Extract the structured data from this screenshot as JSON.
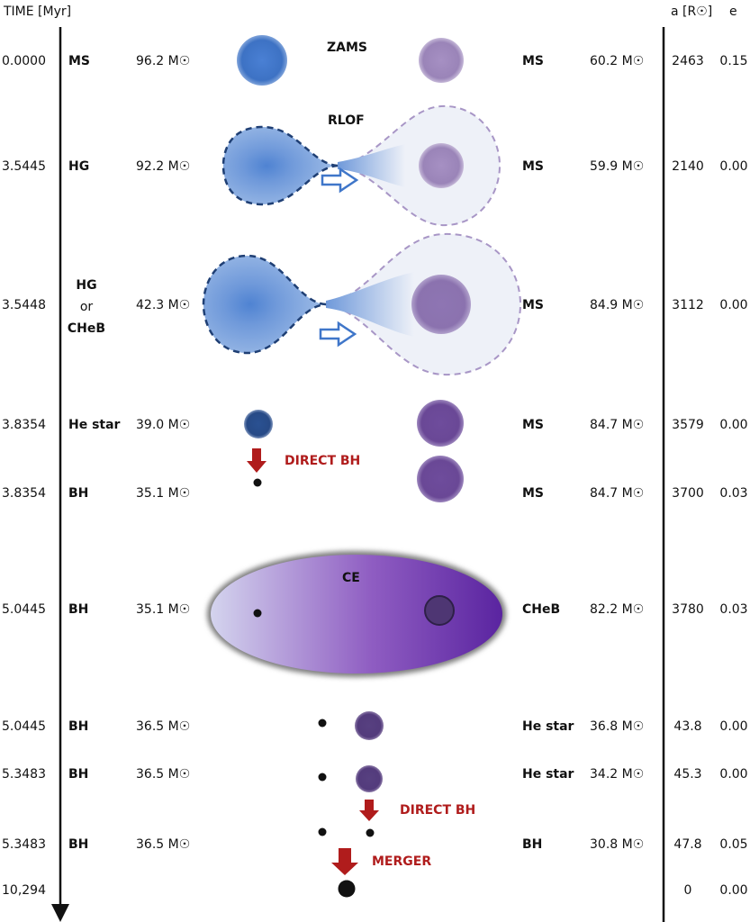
{
  "header": {
    "time_label": "TIME [Myr]",
    "a_label": "a [R☉]",
    "e_label": "e"
  },
  "colors": {
    "primary_star": "#3f76c9",
    "primary_envelope": "#8fb1e2",
    "primary_outline": "#1f3f74",
    "secondary_star": "#9b86b9",
    "secondary_envelope": "#eef1f8",
    "secondary_outline": "#a896c6",
    "evolved_secondary": "#6a4896",
    "ce_purple": "#5a2aa0",
    "annotation_red": "#b01c1c"
  },
  "rows": [
    {
      "time": "0.0000",
      "stage1": "MS",
      "mass1": "96.2 M☉",
      "stage2": "MS",
      "mass2": "60.2 M☉",
      "a": "2463",
      "e": "0.15"
    },
    {
      "time": "3.5445",
      "stage1": "HG",
      "mass1": "92.2 M☉",
      "stage2": "MS",
      "mass2": "59.9 M☉",
      "a": "2140",
      "e": "0.00"
    },
    {
      "time": "3.5448",
      "stage1_lines": [
        "HG",
        "or",
        "CHeB"
      ],
      "mass1": "42.3 M☉",
      "stage2": "MS",
      "mass2": "84.9 M☉",
      "a": "3112",
      "e": "0.00"
    },
    {
      "time": "3.8354",
      "stage1": "He star",
      "mass1": "39.0 M☉",
      "stage2": "MS",
      "mass2": "84.7 M☉",
      "a": "3579",
      "e": "0.00"
    },
    {
      "time": "3.8354",
      "stage1": "BH",
      "mass1": "35.1 M☉",
      "stage2": "MS",
      "mass2": "84.7 M☉",
      "a": "3700",
      "e": "0.03"
    },
    {
      "time": "5.0445",
      "stage1": "BH",
      "mass1": "35.1 M☉",
      "stage2": "CHeB",
      "mass2": "82.2 M☉",
      "a": "3780",
      "e": "0.03"
    },
    {
      "time": "5.0445",
      "stage1": "BH",
      "mass1": "36.5 M☉",
      "stage2": "He star",
      "mass2": "36.8 M☉",
      "a": "43.8",
      "e": "0.00"
    },
    {
      "time": "5.3483",
      "stage1": "BH",
      "mass1": "36.5 M☉",
      "stage2": "He star",
      "mass2": "34.2 M☉",
      "a": "45.3",
      "e": "0.00"
    },
    {
      "time": "5.3483",
      "stage1": "BH",
      "mass1": "36.5 M☉",
      "stage2": "BH",
      "mass2": "30.8 M☉",
      "a": "47.8",
      "e": "0.05"
    },
    {
      "time": "10,294",
      "stage1": "",
      "mass1": "",
      "stage2": "",
      "mass2": "",
      "a": "0",
      "e": "0.00"
    }
  ],
  "annotations": {
    "zams": "ZAMS",
    "rlof": "RLOF",
    "direct_bh_1": "DIRECT BH",
    "ce": "CE",
    "direct_bh_2": "DIRECT BH",
    "merger": "MERGER"
  }
}
